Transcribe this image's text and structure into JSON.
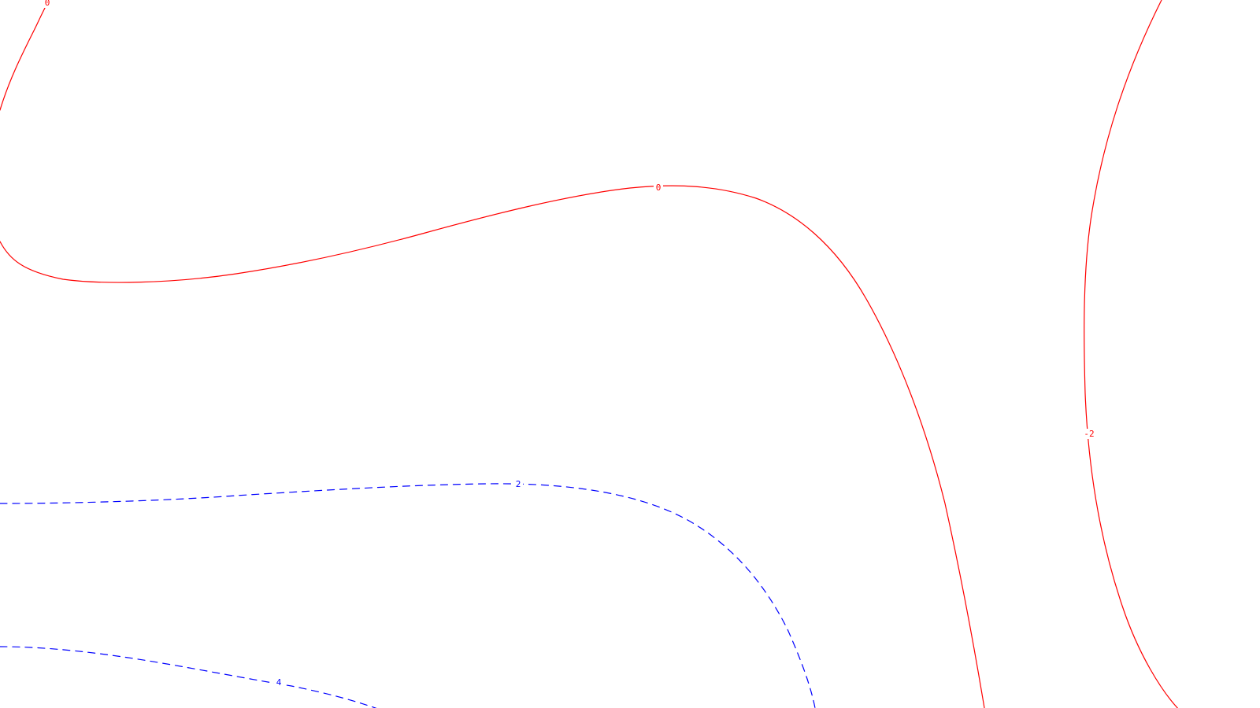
{
  "colors": {
    "background": "#ffffff",
    "zero_and_negative_contour": "#ff0000",
    "positive_contour": "#0000ff"
  },
  "contours": {
    "zero_top_left": {
      "level_label": "0",
      "color": "#ff0000",
      "style": "solid"
    },
    "zero_main": {
      "level_label": "0",
      "color": "#ff0000",
      "style": "solid"
    },
    "minus_two_right": {
      "level_label": "-2",
      "color": "#ff0000",
      "style": "solid"
    },
    "plus_two": {
      "level_label": "2",
      "color": "#0000ff",
      "style": "dashed"
    },
    "plus_four": {
      "level_label": "4",
      "color": "#0000ff",
      "style": "dashed"
    }
  }
}
